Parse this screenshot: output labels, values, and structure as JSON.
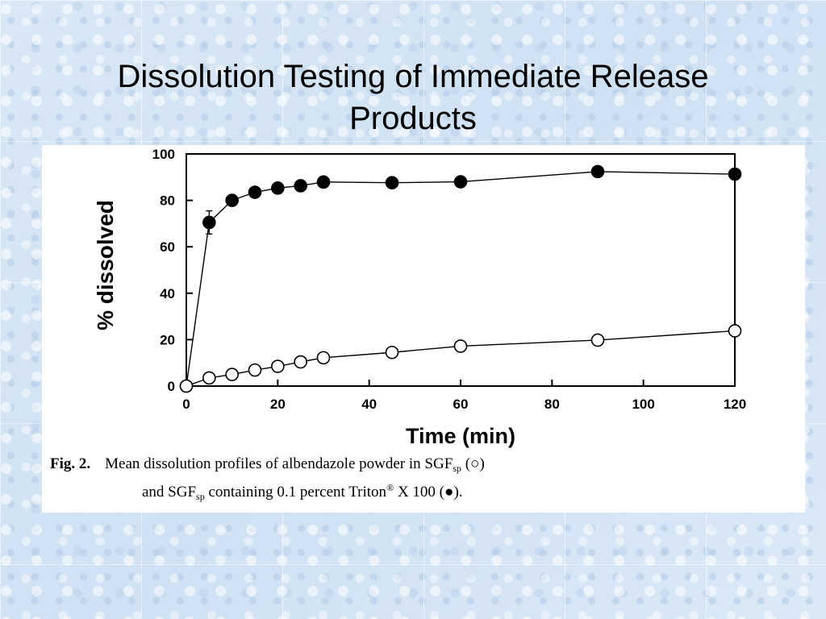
{
  "slide": {
    "title_line1": "Dissolution Testing of Immediate Release",
    "title_line2": "Products"
  },
  "caption": {
    "fig_label": "Fig. 2.",
    "line1_text": "Mean dissolution profiles of albendazole powder in SGF",
    "sub1": "sp",
    "line1_end": " (○)",
    "line2_start": "and SGF",
    "sub2": "sp",
    "line2_mid": " containing 0.1 percent Triton",
    "reg": "®",
    "line2_end": " X 100 (●)."
  },
  "chart_data": {
    "type": "line",
    "title": "",
    "xlabel": "Time (min)",
    "ylabel": "% dissolved",
    "xlim": [
      0,
      120
    ],
    "ylim": [
      0,
      100
    ],
    "xticks": [
      0,
      20,
      40,
      60,
      80,
      100,
      120
    ],
    "yticks": [
      0,
      20,
      40,
      60,
      80,
      100
    ],
    "grid": false,
    "legend": "none (described in caption)",
    "series": [
      {
        "marker": "filled-circle",
        "x": [
          0,
          5,
          10,
          15,
          20,
          25,
          30,
          45,
          60,
          90,
          120
        ],
        "y": [
          0,
          70.5,
          80,
          83.5,
          85.3,
          86.3,
          87.9,
          87.6,
          88,
          92.4,
          91.3
        ],
        "error": [
          0,
          5,
          1.5,
          1,
          1,
          1,
          1,
          1,
          1,
          2,
          1.5
        ]
      },
      {
        "marker": "open-circle",
        "x": [
          0,
          5,
          10,
          15,
          20,
          25,
          30,
          45,
          60,
          90,
          120
        ],
        "y": [
          0,
          3.5,
          5,
          6.9,
          8.5,
          10.4,
          12.2,
          14.5,
          17.2,
          19.8,
          23.8
        ],
        "error": [
          0,
          0.5,
          0.5,
          0.5,
          0.5,
          0.5,
          0.5,
          0.5,
          0.5,
          0.5,
          0.5
        ]
      }
    ]
  },
  "colors": {
    "background": "#d7e7f6",
    "panel": "#ffffff",
    "ink": "#000000"
  }
}
